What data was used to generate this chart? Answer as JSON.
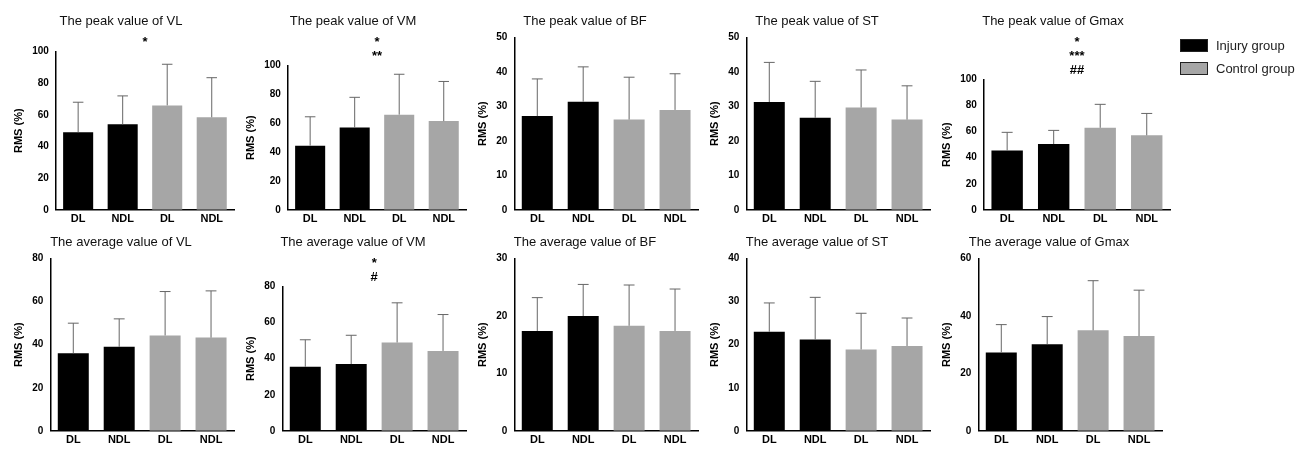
{
  "chart_data": [
    {
      "type": "bar",
      "title": "The peak value of VL",
      "ylabel": "RMS (%)",
      "categories": [
        "DL",
        "NDL",
        "DL",
        "NDL"
      ],
      "ylim": [
        0,
        100
      ],
      "yticks": [
        0,
        20,
        40,
        60,
        80,
        100
      ],
      "grid": false,
      "legend": false,
      "annotations": [
        "*"
      ],
      "series": [
        {
          "color": "#000000",
          "values": [
            49,
            54,
            null,
            null
          ],
          "errors": [
            [
              49,
              68
            ],
            [
              54,
              72
            ],
            null,
            null
          ]
        },
        {
          "color": "#a6a6a6",
          "values": [
            null,
            null,
            66,
            58.5
          ],
          "errors": [
            null,
            null,
            [
              66,
              92
            ],
            [
              58.5,
              83.5
            ]
          ]
        }
      ]
    },
    {
      "type": "bar",
      "title": "The peak value of VM",
      "ylabel": "RMS (%)",
      "categories": [
        "DL",
        "NDL",
        "DL",
        "NDL"
      ],
      "ylim": [
        0,
        100
      ],
      "yticks": [
        0,
        20,
        40,
        60,
        80,
        100
      ],
      "grid": false,
      "legend": false,
      "annotations": [
        "*",
        "**"
      ],
      "series": [
        {
          "color": "#000000",
          "values": [
            44.5,
            57,
            null,
            null
          ],
          "errors": [
            [
              44.5,
              64.5
            ],
            [
              57,
              78
            ],
            null,
            null
          ]
        },
        {
          "color": "#a6a6a6",
          "values": [
            null,
            null,
            66,
            61.5
          ],
          "errors": [
            null,
            null,
            [
              66,
              94
            ],
            [
              61.5,
              89
            ]
          ]
        }
      ]
    },
    {
      "type": "bar",
      "title": "The peak value of BF",
      "ylabel": "RMS (%)",
      "categories": [
        "DL",
        "NDL",
        "DL",
        "NDL"
      ],
      "ylim": [
        0,
        50
      ],
      "yticks": [
        0,
        10,
        20,
        30,
        40,
        50
      ],
      "grid": false,
      "legend": false,
      "series": [
        {
          "color": "#000000",
          "values": [
            27.2,
            31.4,
            null,
            null
          ],
          "errors": [
            [
              27.2,
              38
            ],
            [
              31.4,
              41.5
            ],
            null,
            null
          ]
        },
        {
          "color": "#a6a6a6",
          "values": [
            null,
            null,
            26.2,
            29
          ],
          "errors": [
            null,
            null,
            [
              26.2,
              38.5
            ],
            [
              29,
              39.5
            ]
          ]
        }
      ]
    },
    {
      "type": "bar",
      "title": "The peak value of ST",
      "ylabel": "RMS (%)",
      "categories": [
        "DL",
        "NDL",
        "DL",
        "NDL"
      ],
      "ylim": [
        0,
        50
      ],
      "yticks": [
        0,
        10,
        20,
        30,
        40,
        50
      ],
      "grid": false,
      "legend": false,
      "series": [
        {
          "color": "#000000",
          "values": [
            31.3,
            26.7,
            null,
            null
          ],
          "errors": [
            [
              31.3,
              42.8
            ],
            [
              26.7,
              37.3
            ],
            null,
            null
          ]
        },
        {
          "color": "#a6a6a6",
          "values": [
            null,
            null,
            29.7,
            26.2
          ],
          "errors": [
            null,
            null,
            [
              29.7,
              40.6
            ],
            [
              26.2,
              36
            ]
          ]
        }
      ]
    },
    {
      "type": "bar",
      "title": "The peak value of Gmax",
      "ylabel": "RMS (%)",
      "categories": [
        "DL",
        "NDL",
        "DL",
        "NDL"
      ],
      "ylim": [
        0,
        100
      ],
      "yticks": [
        0,
        20,
        40,
        60,
        80,
        100
      ],
      "grid": false,
      "legend": "right",
      "annotations": [
        "*",
        "***",
        "##"
      ],
      "series": [
        {
          "name": "Injury group",
          "color": "#000000",
          "values": [
            45.5,
            50.5,
            null,
            null
          ],
          "errors": [
            [
              45.5,
              59.5
            ],
            [
              50.5,
              61
            ],
            null,
            null
          ]
        },
        {
          "name": "Control group",
          "color": "#a6a6a6",
          "values": [
            null,
            null,
            63,
            57.2
          ],
          "errors": [
            null,
            null,
            [
              63,
              81
            ],
            [
              57.2,
              74
            ]
          ]
        }
      ]
    },
    {
      "type": "bar",
      "title": "The average value of VL",
      "ylabel": "RMS (%)",
      "categories": [
        "DL",
        "NDL",
        "DL",
        "NDL"
      ],
      "ylim": [
        0,
        80
      ],
      "yticks": [
        0,
        20,
        40,
        60,
        80
      ],
      "grid": false,
      "legend": false,
      "series": [
        {
          "color": "#000000",
          "values": [
            36,
            39,
            null,
            null
          ],
          "errors": [
            [
              36,
              50
            ],
            [
              39,
              52
            ],
            null,
            null
          ]
        },
        {
          "color": "#a6a6a6",
          "values": [
            null,
            null,
            44.3,
            43.3
          ],
          "errors": [
            null,
            null,
            [
              44.3,
              64.7
            ],
            [
              43.3,
              65
            ]
          ]
        }
      ]
    },
    {
      "type": "bar",
      "title": "The average value of VM",
      "ylabel": "RMS (%)",
      "categories": [
        "DL",
        "NDL",
        "DL",
        "NDL"
      ],
      "ylim": [
        0,
        80
      ],
      "yticks": [
        0,
        20,
        40,
        60,
        80
      ],
      "grid": false,
      "legend": false,
      "annotations": [
        "*",
        "#"
      ],
      "series": [
        {
          "color": "#000000",
          "values": [
            35.5,
            37,
            null,
            null
          ],
          "errors": [
            [
              35.5,
              50.5
            ],
            [
              37,
              53
            ],
            null,
            null
          ]
        },
        {
          "color": "#a6a6a6",
          "values": [
            null,
            null,
            49,
            44.3
          ],
          "errors": [
            null,
            null,
            [
              49,
              71
            ],
            [
              44.3,
              64.5
            ]
          ]
        }
      ]
    },
    {
      "type": "bar",
      "title": "The average value of BF",
      "ylabel": "RMS (%)",
      "categories": [
        "DL",
        "NDL",
        "DL",
        "NDL"
      ],
      "ylim": [
        0,
        30
      ],
      "yticks": [
        0,
        10,
        20,
        30
      ],
      "grid": false,
      "legend": false,
      "series": [
        {
          "color": "#000000",
          "values": [
            17.4,
            20,
            null,
            null
          ],
          "errors": [
            [
              17.4,
              23.2
            ],
            [
              20,
              25.5
            ],
            null,
            null
          ]
        },
        {
          "color": "#a6a6a6",
          "values": [
            null,
            null,
            18.3,
            17.4
          ],
          "errors": [
            null,
            null,
            [
              18.3,
              25.4
            ],
            [
              17.4,
              24.7
            ]
          ]
        }
      ]
    },
    {
      "type": "bar",
      "title": "The average value of ST",
      "ylabel": "RMS (%)",
      "categories": [
        "DL",
        "NDL",
        "DL",
        "NDL"
      ],
      "ylim": [
        0,
        40
      ],
      "yticks": [
        0,
        10,
        20,
        30,
        40
      ],
      "grid": false,
      "legend": false,
      "series": [
        {
          "color": "#000000",
          "values": [
            23,
            21.2,
            null,
            null
          ],
          "errors": [
            [
              23,
              29.7
            ],
            [
              21.2,
              31
            ],
            null,
            null
          ]
        },
        {
          "color": "#a6a6a6",
          "values": [
            null,
            null,
            18.9,
            19.7
          ],
          "errors": [
            null,
            null,
            [
              18.9,
              27.3
            ],
            [
              19.7,
              26.2
            ]
          ]
        }
      ]
    },
    {
      "type": "bar",
      "title": "The average value of Gmax",
      "ylabel": "RMS (%)",
      "categories": [
        "DL",
        "NDL",
        "DL",
        "NDL"
      ],
      "ylim": [
        0,
        60
      ],
      "yticks": [
        0,
        20,
        40,
        60
      ],
      "grid": false,
      "legend": false,
      "series": [
        {
          "color": "#000000",
          "values": [
            27.3,
            30.2,
            null,
            null
          ],
          "errors": [
            [
              27.3,
              37
            ],
            [
              30.2,
              39.8
            ],
            null,
            null
          ]
        },
        {
          "color": "#a6a6a6",
          "values": [
            null,
            null,
            35,
            33
          ],
          "errors": [
            null,
            null,
            [
              35,
              52.3
            ],
            [
              33,
              49
            ]
          ]
        }
      ]
    }
  ]
}
